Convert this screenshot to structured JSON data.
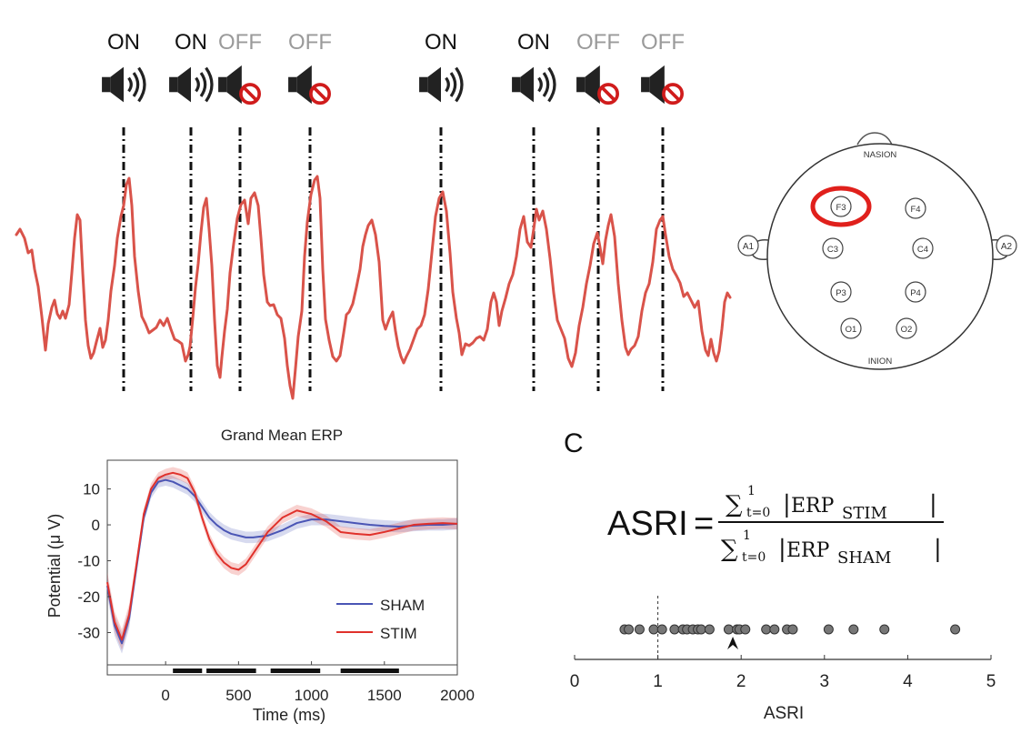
{
  "stimulation_panel": {
    "events": [
      {
        "label": "ON",
        "state": "on"
      },
      {
        "label": "ON",
        "state": "on"
      },
      {
        "label": "OFF",
        "state": "off"
      },
      {
        "label": "OFF",
        "state": "off"
      },
      {
        "label": "ON",
        "state": "on"
      },
      {
        "label": "ON",
        "state": "on"
      },
      {
        "label": "OFF",
        "state": "off"
      },
      {
        "label": "OFF",
        "state": "off"
      }
    ],
    "trace_color": "#d9534a",
    "on_color": "#111111",
    "off_color": "#9a9a9a",
    "icons": {
      "on": "speaker-on-icon",
      "off": "speaker-muted-icon"
    }
  },
  "head_map": {
    "nasion": "NASION",
    "inion": "INION",
    "ears": [
      "A1",
      "A2"
    ],
    "electrodes": [
      "F3",
      "F4",
      "C3",
      "C4",
      "P3",
      "P4",
      "O1",
      "O2"
    ],
    "highlighted": "F3",
    "highlight_color": "#e0201c"
  },
  "formula_panel": {
    "panel_letter": "C",
    "lhs": "ASRI",
    "equals": "=",
    "sum_symbol": "∑",
    "sum_upper": "1",
    "sum_lower": "t=0",
    "numerator_term": "ERP",
    "numerator_sub": "STIM",
    "denominator_term": "ERP",
    "denominator_sub": "SHAM"
  },
  "chart_data": [
    {
      "type": "line",
      "title": "Grand Mean ERP",
      "xlabel": "Time (ms)",
      "ylabel": "Potential (μ V)",
      "xlim": [
        -400,
        2000
      ],
      "ylim": [
        -39,
        18
      ],
      "x_ticks": [
        "0",
        "500",
        "1000",
        "1500",
        "2000"
      ],
      "x_tick_values": [
        0,
        500,
        1000,
        1500,
        2000
      ],
      "y_ticks": [
        "10",
        "0",
        "-10",
        "-20",
        "-30"
      ],
      "y_tick_values": [
        10,
        0,
        -10,
        -20,
        -30
      ],
      "legend_placement": "bottom-right",
      "series": [
        {
          "name": "SHAM",
          "color": "#4a55b5",
          "x": [
            -400,
            -350,
            -300,
            -250,
            -200,
            -150,
            -100,
            -50,
            0,
            50,
            100,
            150,
            200,
            250,
            300,
            350,
            400,
            450,
            500,
            550,
            600,
            700,
            800,
            900,
            1000,
            1100,
            1200,
            1300,
            1400,
            1500,
            1600,
            1700,
            1800,
            1900,
            2000
          ],
          "y": [
            -17,
            -28,
            -33,
            -26,
            -12,
            2,
            9,
            12,
            12.5,
            12,
            11,
            10,
            8,
            5,
            2,
            0,
            -1.5,
            -2.5,
            -3,
            -3.5,
            -3.5,
            -3,
            -1.5,
            0.5,
            1.5,
            1.5,
            1,
            0.5,
            0,
            -0.3,
            -0.5,
            -0.2,
            0,
            0,
            0.3
          ]
        },
        {
          "name": "STIM",
          "color": "#e0312b",
          "x": [
            -400,
            -350,
            -300,
            -250,
            -200,
            -150,
            -100,
            -50,
            0,
            50,
            100,
            150,
            200,
            250,
            300,
            350,
            400,
            450,
            500,
            550,
            600,
            700,
            800,
            900,
            1000,
            1100,
            1200,
            1300,
            1400,
            1500,
            1600,
            1700,
            1800,
            1900,
            2000
          ],
          "y": [
            -16,
            -27,
            -32,
            -25,
            -11,
            3,
            10,
            13,
            14,
            14.5,
            14,
            13,
            9,
            2,
            -4,
            -8,
            -10.5,
            -12,
            -12.5,
            -11,
            -8,
            -2,
            2,
            4,
            3,
            1,
            -2,
            -2.5,
            -2.8,
            -2,
            -1,
            0,
            0.3,
            0.5,
            0.3
          ]
        }
      ],
      "significance_bars_ms": [
        [
          50,
          250
        ],
        [
          280,
          620
        ],
        [
          720,
          1060
        ],
        [
          1200,
          1600
        ]
      ]
    },
    {
      "type": "scatter",
      "xlabel": "ASRI",
      "xlim": [
        0,
        5
      ],
      "x_ticks": [
        "0",
        "1",
        "2",
        "3",
        "4",
        "5"
      ],
      "x_tick_values": [
        0,
        1,
        2,
        3,
        4,
        5
      ],
      "reference_line_x": 1,
      "marker_color": "#777777",
      "values": [
        0.6,
        0.65,
        0.78,
        0.95,
        1.05,
        1.2,
        1.3,
        1.35,
        1.42,
        1.48,
        1.52,
        1.62,
        1.85,
        1.95,
        1.98,
        2.05,
        2.3,
        2.4,
        2.55,
        2.62,
        3.05,
        3.35,
        3.72,
        4.57
      ],
      "arrow_at": 1.9
    }
  ]
}
